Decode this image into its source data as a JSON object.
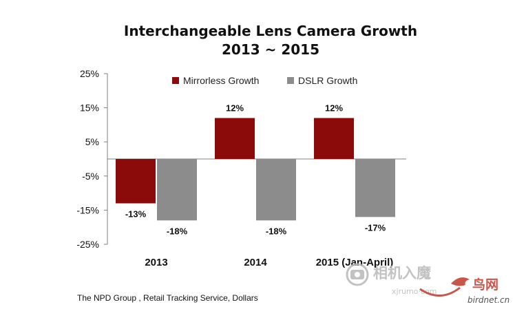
{
  "source_note": "The NPD Group , Retail Tracking Service, Dollars",
  "watermark": {
    "cn_name": "相机入魔",
    "latin": "xjrumo·com",
    "site_cn": "鸟网",
    "site_url": "birdnet.cn"
  },
  "colors": {
    "mirrorless": "#8B0A0A",
    "dslr": "#8C8C8C",
    "axis": "#7F7F7F",
    "watermark": "#B8B8B8",
    "birdnet": "#C0392B"
  },
  "chart_data": {
    "type": "bar",
    "title": "Interchangeable Lens Camera Growth",
    "subtitle": "2013 ~ 2015",
    "xlabel": "",
    "ylabel": "",
    "categories": [
      "2013",
      "2014",
      "2015 (Jan-April)"
    ],
    "series": [
      {
        "name": "Mirrorless Growth",
        "values": [
          -13,
          12,
          12
        ],
        "labels": [
          "-13%",
          "12%",
          "12%"
        ]
      },
      {
        "name": "DSLR Growth",
        "values": [
          -18,
          -18,
          -17
        ],
        "labels": [
          "-18%",
          "-18%",
          "-17%"
        ]
      }
    ],
    "ylim": [
      -25,
      25
    ],
    "yticks": [
      25,
      15,
      5,
      -5,
      -15,
      -25
    ],
    "ytick_labels": [
      "25%",
      "15%",
      "5%",
      "-5%",
      "-15%",
      "-25%"
    ],
    "grid": false,
    "legend_position": "top"
  }
}
